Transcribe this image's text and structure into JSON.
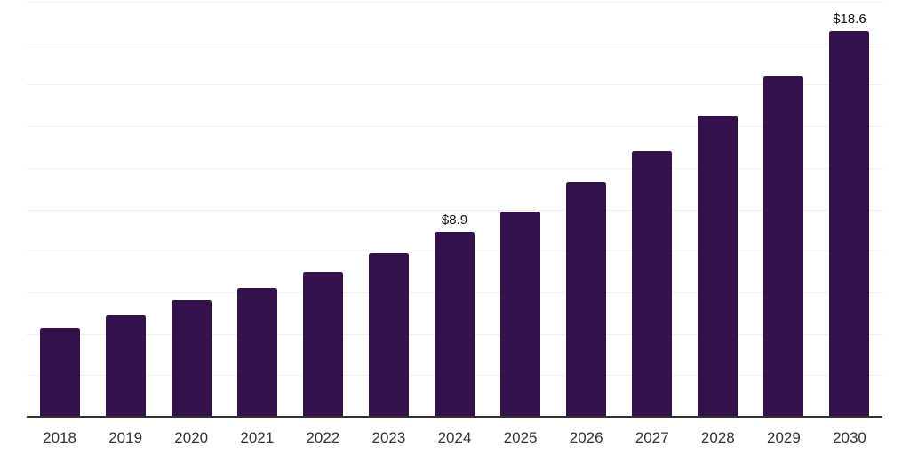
{
  "chart_data": {
    "type": "bar",
    "title": "",
    "xlabel": "",
    "ylabel": "",
    "categories": [
      "2018",
      "2019",
      "2020",
      "2021",
      "2022",
      "2023",
      "2024",
      "2025",
      "2026",
      "2027",
      "2028",
      "2029",
      "2030"
    ],
    "values": [
      4.3,
      4.9,
      5.6,
      6.2,
      7.0,
      7.9,
      8.9,
      9.9,
      11.3,
      12.8,
      14.5,
      16.4,
      18.6
    ],
    "annotations": [
      {
        "category": "2024",
        "text": "$8.9"
      },
      {
        "category": "2030",
        "text": "$18.6"
      }
    ],
    "ylim": [
      0,
      20
    ],
    "gridline_interval": 2,
    "grid": true,
    "legend": false,
    "colors": {
      "bar": "#35114c",
      "gridline": "#f0f0f0",
      "axis_line": "#333333",
      "tick_label": "#333333",
      "data_label": "#111111",
      "background": "#ffffff"
    }
  }
}
